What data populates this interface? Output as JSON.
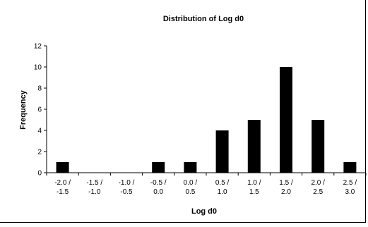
{
  "chart_data": {
    "type": "bar",
    "title": "Distribution of Log d0",
    "xlabel": "Log d0",
    "ylabel": "Frequency",
    "ylim": [
      0,
      12
    ],
    "yticks": [
      0,
      2,
      4,
      6,
      8,
      10,
      12
    ],
    "categories": [
      [
        "-2.0 /",
        "-1.5"
      ],
      [
        "-1.5 /",
        "-1.0"
      ],
      [
        "-1.0 /",
        "-0.5"
      ],
      [
        "-0.5 /",
        "0.0"
      ],
      [
        "0.0 /",
        "0.5"
      ],
      [
        "0.5 /",
        "1.0"
      ],
      [
        "1.0 /",
        "1.5"
      ],
      [
        "1.5 /",
        "2.0"
      ],
      [
        "2.0 /",
        "2.5"
      ],
      [
        "2.5 /",
        "3.0"
      ]
    ],
    "values": [
      1,
      0,
      0,
      1,
      1,
      4,
      5,
      10,
      5,
      1
    ],
    "bar_color": "#000000",
    "grid": false,
    "legend": "none"
  }
}
